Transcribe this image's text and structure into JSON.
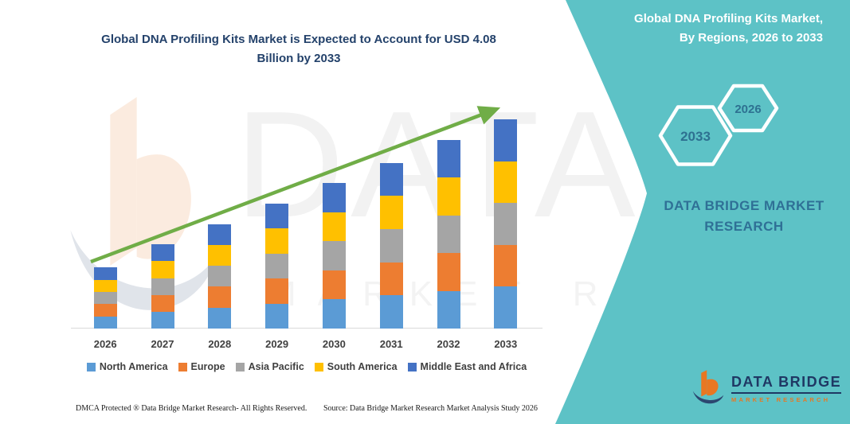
{
  "infographic_title": "Global DNA Profiling Kits Market is Expected to Account for USD 4.08 Billion by 2033",
  "side_panel": {
    "panel_color": "#5DC2C6",
    "title_line1": "Global DNA Profiling Kits Market,",
    "title_line2": "By Regions, 2026 to 2033",
    "hexagons": [
      {
        "label": "2033"
      },
      {
        "label": "2026"
      }
    ],
    "hex_text_color": "#2E7191",
    "brand_line1": "DATA BRIDGE MARKET",
    "brand_line2": "RESEARCH"
  },
  "watermark": {
    "line1": "DATA BRIDGE",
    "line2": "MARKET RESEARCH"
  },
  "chart_data": {
    "type": "bar",
    "stacked": true,
    "title": "Global DNA Profiling Kits Market, By Regions, 2026 to 2033",
    "unit": "USD Billion",
    "categories": [
      "2026",
      "2027",
      "2028",
      "2029",
      "2030",
      "2031",
      "2032",
      "2033"
    ],
    "series": [
      {
        "name": "North America",
        "color": "#5B9BD5",
        "values": [
          0.24,
          0.33,
          0.41,
          0.49,
          0.57,
          0.65,
          0.74,
          0.82
        ]
      },
      {
        "name": "Europe",
        "color": "#ED7D31",
        "values": [
          0.24,
          0.33,
          0.41,
          0.49,
          0.57,
          0.65,
          0.74,
          0.82
        ]
      },
      {
        "name": "Asia Pacific",
        "color": "#A5A5A5",
        "values": [
          0.24,
          0.33,
          0.41,
          0.49,
          0.57,
          0.65,
          0.74,
          0.82
        ]
      },
      {
        "name": "South America",
        "color": "#FFC000",
        "values": [
          0.24,
          0.33,
          0.41,
          0.49,
          0.57,
          0.65,
          0.74,
          0.82
        ]
      },
      {
        "name": "Middle East and Africa",
        "color": "#4472C4",
        "values": [
          0.24,
          0.33,
          0.41,
          0.49,
          0.57,
          0.65,
          0.74,
          0.82
        ]
      }
    ],
    "totals": [
      1.22,
      1.64,
      2.03,
      2.46,
      2.86,
      3.25,
      3.68,
      4.08
    ],
    "final_value_label": "USD 4.08 Billion by 2033",
    "trend_arrow": true,
    "trend_color": "#70AD47",
    "legend_position": "bottom",
    "y_axis_shown": false,
    "gridlines": false
  },
  "footer": {
    "dmca_text": "DMCA Protected ® Data Bridge Market Research-  All Rights Reserved.",
    "source_text": "Source: Data Bridge Market Research  Market Analysis Study 2026"
  },
  "logo": {
    "brand_name": "DATA BRIDGE",
    "brand_tagline": "MARKET RESEARCH"
  }
}
